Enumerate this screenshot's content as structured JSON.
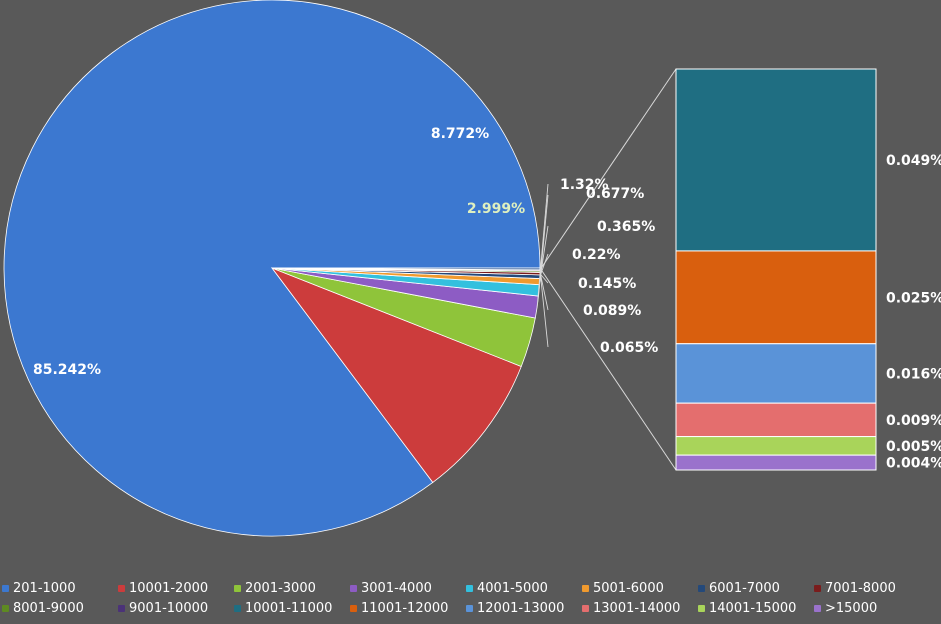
{
  "chart_data": {
    "type": "pie",
    "subtype": "bar-of-pie",
    "main_slices": [
      {
        "category": "201-1000",
        "value": 85.242,
        "label": "85.242%",
        "color": "#3c78d0"
      },
      {
        "category": "10001-2000",
        "value": 8.772,
        "label": "8.772%",
        "color": "#cc3c3c"
      },
      {
        "category": "2001-3000",
        "value": 2.999,
        "label": "2.999%",
        "color": "#8fc43a"
      },
      {
        "category": "3001-4000",
        "value": 1.32,
        "label": "1.32%",
        "color": "#8d5cc4"
      },
      {
        "category": "4001-5000",
        "value": 0.677,
        "label": "0.677%",
        "color": "#33c0de"
      },
      {
        "category": "5001-6000",
        "value": 0.365,
        "label": "0.365%",
        "color": "#f09a2e"
      },
      {
        "category": "6001-7000",
        "value": 0.22,
        "label": "0.22%",
        "color": "#24497a"
      },
      {
        "category": "7001-8000",
        "value": 0.145,
        "label": "0.145%",
        "color": "#7a1c1c"
      },
      {
        "category": "8001-9000",
        "value": 0.089,
        "label": "0.089%",
        "color": "#5e8a22"
      },
      {
        "category": "9001-10000",
        "value": 0.065,
        "label": "0.065%",
        "color": "#4b3278"
      }
    ],
    "other_group_value": 0.108,
    "bar_segments": [
      {
        "category": "10001-11000",
        "value": 0.049,
        "label": "0.049%",
        "color": "#1f6e82"
      },
      {
        "category": "11001-12000",
        "value": 0.025,
        "label": "0.025%",
        "color": "#d95f0e"
      },
      {
        "category": "12001-13000",
        "value": 0.016,
        "label": "0.016%",
        "color": "#5a93d8"
      },
      {
        "category": "13001-14000",
        "value": 0.009,
        "label": "0.009%",
        "color": "#e46e6e"
      },
      {
        "category": "14001-15000",
        "value": 0.005,
        "label": "0.005%",
        "color": "#a9d45a"
      },
      {
        "category": ">15000",
        "value": 0.004,
        "label": "0.004%",
        "color": "#9a72cc"
      }
    ],
    "legend": {
      "position": "bottom",
      "entries": [
        {
          "label": "201-1000",
          "color": "#3c78d0"
        },
        {
          "label": "10001-2000",
          "color": "#cc3c3c"
        },
        {
          "label": "2001-3000",
          "color": "#8fc43a"
        },
        {
          "label": "3001-4000",
          "color": "#8d5cc4"
        },
        {
          "label": "4001-5000",
          "color": "#33c0de"
        },
        {
          "label": "5001-6000",
          "color": "#f09a2e"
        },
        {
          "label": "6001-7000",
          "color": "#24497a"
        },
        {
          "label": "7001-8000",
          "color": "#7a1c1c"
        },
        {
          "label": "8001-9000",
          "color": "#5e8a22"
        },
        {
          "label": "9001-10000",
          "color": "#4b3278"
        },
        {
          "label": "10001-11000",
          "color": "#1f6e82"
        },
        {
          "label": "11001-12000",
          "color": "#d95f0e"
        },
        {
          "label": "12001-13000",
          "color": "#5a93d8"
        },
        {
          "label": "13001-14000",
          "color": "#e46e6e"
        },
        {
          "label": "14001-15000",
          "color": "#a9d45a"
        },
        {
          ">15000": null,
          "label": ">15000",
          "color": "#9a72cc"
        }
      ]
    },
    "background_color": "#595959",
    "label_color": "#ffffff",
    "leader_line_color": "#d9d9d9"
  }
}
